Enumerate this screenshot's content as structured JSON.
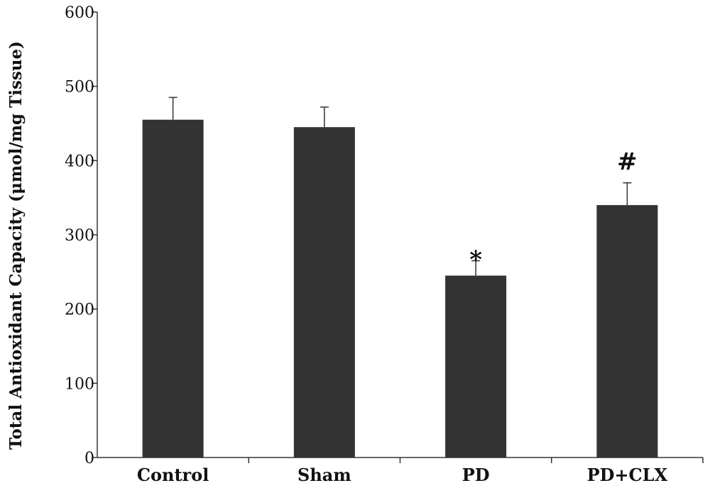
{
  "chart_data": {
    "type": "bar",
    "ylabel": "Total Antioxidant Capacity (μmol/mg Tissue)",
    "xlabel": "",
    "categories": [
      "Control",
      "Sham",
      "PD",
      "PD+CLX"
    ],
    "values": [
      455,
      445,
      245,
      340
    ],
    "error": [
      30,
      27,
      20,
      30
    ],
    "annotations": [
      "",
      "",
      "*",
      "#"
    ],
    "ylim": [
      0,
      600
    ],
    "yticks": [
      0,
      100,
      200,
      300,
      400,
      500,
      600
    ],
    "bar_color": "#333333",
    "grid": false
  }
}
